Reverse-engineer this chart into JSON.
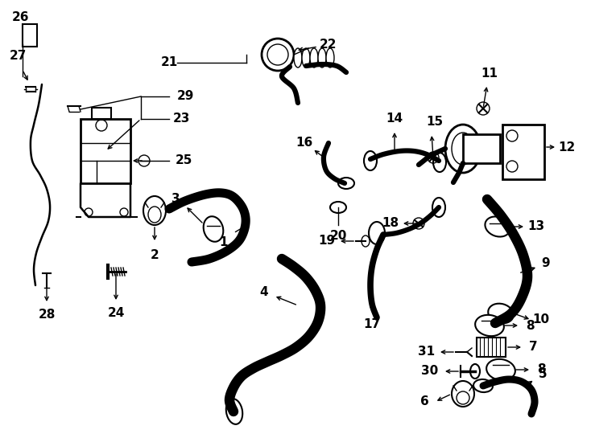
{
  "bg_color": "#ffffff",
  "line_color": "#000000",
  "fig_width": 7.34,
  "fig_height": 5.4,
  "dpi": 100,
  "lw_thin": 1.0,
  "lw_med": 1.8,
  "lw_thick": 4.5,
  "lw_xthick": 7.0,
  "label_fontsize": 10,
  "label_bold": true
}
